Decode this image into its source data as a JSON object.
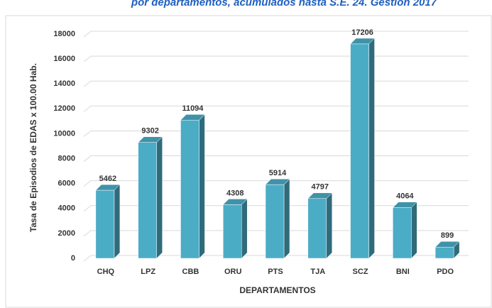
{
  "chart_data": {
    "type": "bar3d",
    "title": "por departamentos, acumulados hasta S.E. 24. Gestión 2017",
    "x_label": "DEPARTAMENTOS",
    "y_label": "Tasa de Episodios de  EDAS x 100.00 Hab.",
    "categories": [
      "CHQ",
      "LPZ",
      "CBB",
      "ORU",
      "PTS",
      "TJA",
      "SCZ",
      "BNI",
      "PDO"
    ],
    "values": [
      5462,
      9302,
      11094,
      4308,
      5914,
      4797,
      17206,
      4064,
      899
    ],
    "color": "#4bacc6",
    "ylim": [
      0,
      18000
    ],
    "yticks": [
      0,
      2000,
      4000,
      6000,
      8000,
      10000,
      12000,
      14000,
      16000,
      18000
    ],
    "grid": true
  }
}
